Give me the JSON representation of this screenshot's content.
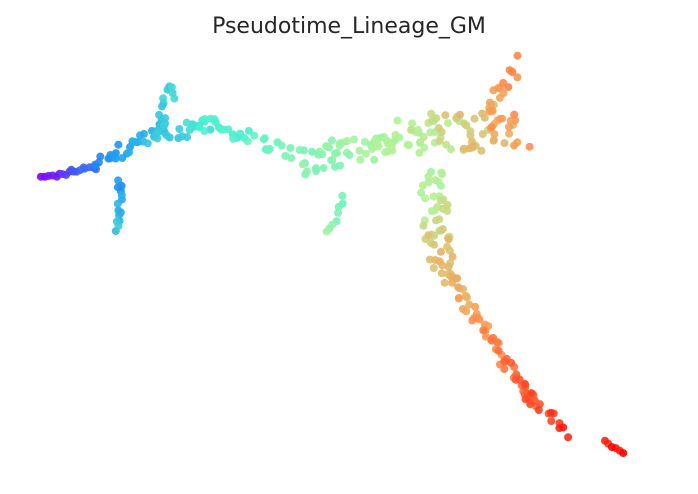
{
  "chart_data": {
    "type": "scatter",
    "title": "Pseudotime_Lineage_GM",
    "xlabel": "",
    "ylabel": "",
    "grid": false,
    "axes_visible": false,
    "colormap": "rainbow",
    "colormap_stops": [
      "#8000ff",
      "#1996f3",
      "#4df3ce",
      "#b2f396",
      "#ff964f",
      "#ff0000"
    ],
    "x_range": [
      0,
      100
    ],
    "y_range": [
      0,
      60
    ],
    "color_range": [
      0,
      1
    ],
    "branches": [
      {
        "from": [
          0.5,
          42.5
        ],
        "to": [
          9.0,
          44.5
        ],
        "n": 18,
        "c0": 0.0,
        "c1": 0.16,
        "spread": 0.35
      },
      {
        "from": [
          9.0,
          44.5
        ],
        "to": [
          19.0,
          49.5
        ],
        "n": 26,
        "c0": 0.16,
        "c1": 0.3,
        "spread": 0.9
      },
      {
        "from": [
          13.0,
          42.0
        ],
        "to": [
          12.5,
          34.5
        ],
        "n": 14,
        "c0": 0.2,
        "c1": 0.3,
        "spread": 0.45
      },
      {
        "from": [
          19.0,
          49.5
        ],
        "to": [
          21.5,
          57.0
        ],
        "n": 14,
        "c0": 0.28,
        "c1": 0.34,
        "spread": 0.8
      },
      {
        "from": [
          19.0,
          49.5
        ],
        "to": [
          29.0,
          50.5
        ],
        "n": 30,
        "c0": 0.28,
        "c1": 0.4,
        "spread": 1.3
      },
      {
        "from": [
          29.0,
          50.5
        ],
        "to": [
          44.0,
          45.0
        ],
        "n": 26,
        "c0": 0.38,
        "c1": 0.52,
        "spread": 1.2
      },
      {
        "from": [
          44.0,
          45.0
        ],
        "to": [
          60.0,
          49.0
        ],
        "n": 55,
        "c0": 0.5,
        "c1": 0.62,
        "spread": 2.0
      },
      {
        "from": [
          49.0,
          39.5
        ],
        "to": [
          46.0,
          34.0
        ],
        "n": 8,
        "c0": 0.46,
        "c1": 0.55,
        "spread": 0.6
      },
      {
        "from": [
          60.0,
          49.0
        ],
        "to": [
          77.0,
          50.0
        ],
        "n": 65,
        "c0": 0.58,
        "c1": 0.8,
        "spread": 3.0
      },
      {
        "from": [
          72.0,
          52.0
        ],
        "to": [
          77.0,
          60.0
        ],
        "n": 18,
        "c0": 0.72,
        "c1": 0.84,
        "spread": 1.0
      },
      {
        "from": [
          63.0,
          43.0
        ],
        "to": [
          65.0,
          29.0
        ],
        "n": 50,
        "c0": 0.58,
        "c1": 0.74,
        "spread": 2.0
      },
      {
        "from": [
          65.0,
          29.0
        ],
        "to": [
          80.0,
          8.5
        ],
        "n": 60,
        "c0": 0.72,
        "c1": 0.9,
        "spread": 0.9
      },
      {
        "from": [
          77.0,
          12.0
        ],
        "to": [
          85.0,
          4.0
        ],
        "n": 16,
        "c0": 0.85,
        "c1": 0.95,
        "spread": 0.8
      },
      {
        "from": [
          91.0,
          3.0
        ],
        "to": [
          94.0,
          1.2
        ],
        "n": 6,
        "c0": 0.95,
        "c1": 1.0,
        "spread": 0.2
      }
    ]
  }
}
